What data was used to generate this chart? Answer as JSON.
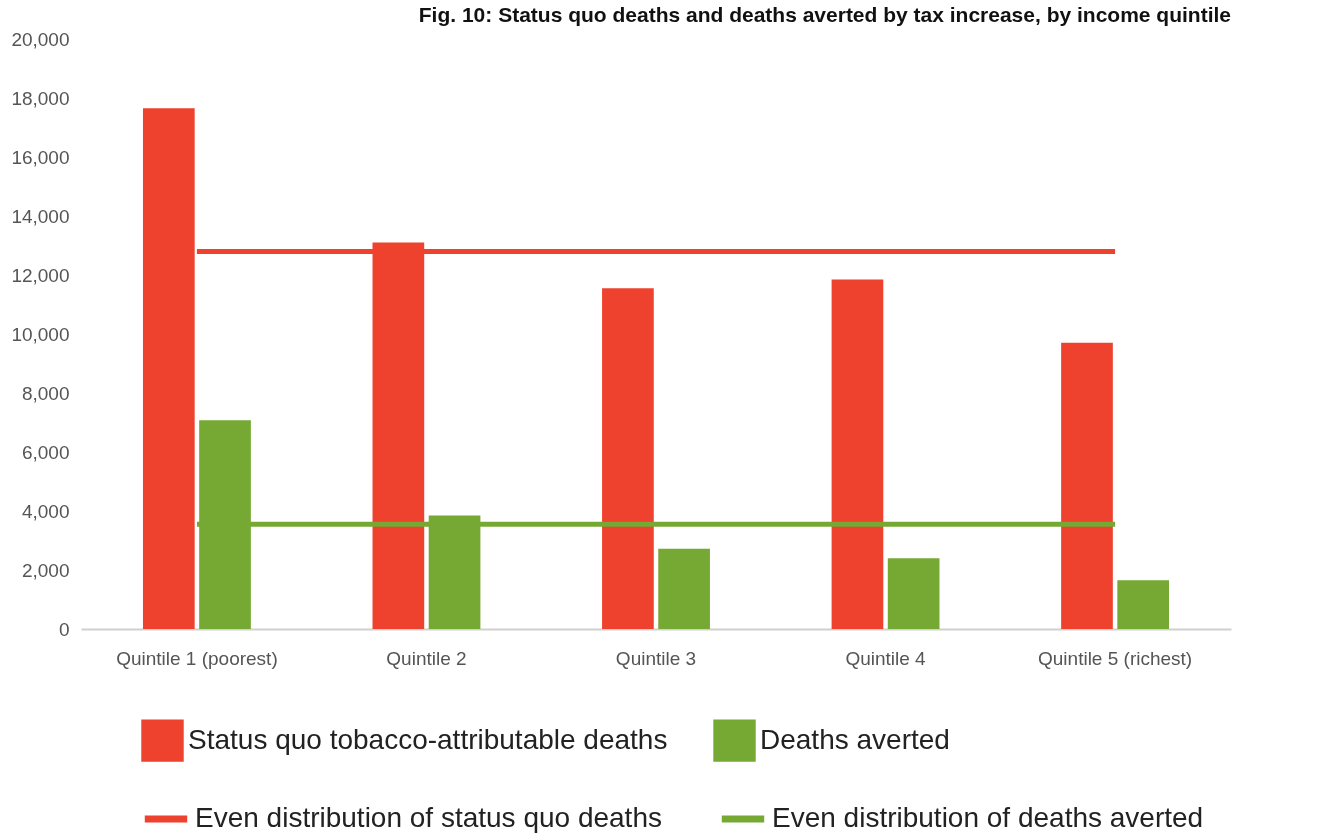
{
  "chart_data": {
    "type": "bar",
    "title": "Fig. 10: Status quo deaths and deaths averted by tax increase, by income quintile",
    "categories": [
      "Quintile 1 (poorest)",
      "Quintile 2",
      "Quintile 3",
      "Quintile 4",
      "Quintile 5 (richest)"
    ],
    "series": [
      {
        "name": "Status quo tobacco-attributable deaths",
        "color": "#ee412e",
        "values": [
          17650,
          13100,
          11550,
          11850,
          9700
        ]
      },
      {
        "name": "Deaths averted",
        "color": "#76a934",
        "values": [
          7080,
          3850,
          2720,
          2400,
          1650
        ]
      },
      {
        "name": "Even distribution of status quo deaths",
        "type": "line",
        "color": "#ee412e",
        "values": [
          12800,
          12800,
          12800,
          12800,
          12800
        ]
      },
      {
        "name": "Even distribution of deaths averted",
        "type": "line",
        "color": "#76a934",
        "values": [
          3550,
          3550,
          3550,
          3550,
          3550
        ]
      }
    ],
    "ylim": [
      0,
      20000
    ],
    "yticks": [
      0,
      {
        "value": 2000,
        "label": "2,000"
      },
      {
        "value": 4000,
        "label": "4,000"
      },
      {
        "value": 6000,
        "label": "6,000"
      },
      {
        "value": 8000,
        "label": "8,000"
      },
      {
        "value": 10000,
        "label": "10,000"
      },
      {
        "value": 12000,
        "label": "12,000"
      },
      {
        "value": 14000,
        "label": "14,000"
      },
      {
        "value": 16000,
        "label": "16,000"
      },
      {
        "value": 18000,
        "label": "18,000"
      },
      {
        "value": 20000,
        "label": "20,000"
      }
    ],
    "grid": false,
    "legend": "bottom"
  }
}
